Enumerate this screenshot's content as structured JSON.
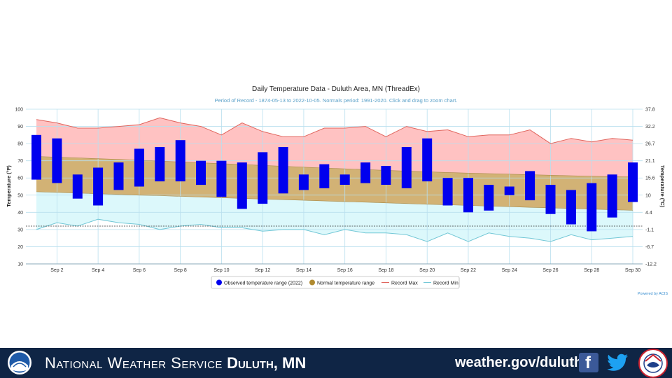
{
  "chart_data": {
    "type": "floating-bar-with-bands",
    "title": "Daily Temperature Data - Duluth Area, MN (ThreadEx)",
    "subtitle": "Period of Record - 1874-05-13 to 2022-10-05. Normals period: 1991-2020. Click and drag to zoom chart.",
    "ylabel_left": "Temperature (°F)",
    "ylabel_right": "Temperature (°C)",
    "ylim": [
      10,
      100
    ],
    "yticks_left": [
      "100",
      "90",
      "80",
      "70",
      "60",
      "50",
      "40",
      "30",
      "20",
      "10"
    ],
    "yticks_right": [
      "37.8",
      "32.2",
      "26.7",
      "21.1",
      "15.6",
      "10",
      "4.4",
      "-1.1",
      "-6.7",
      "-12.2"
    ],
    "days": [
      1,
      2,
      3,
      4,
      5,
      6,
      7,
      8,
      9,
      10,
      11,
      12,
      13,
      14,
      15,
      16,
      17,
      18,
      19,
      20,
      21,
      22,
      23,
      24,
      25,
      26,
      27,
      28,
      29,
      30
    ],
    "xtick_labels": [
      "Sep 2",
      "Sep 4",
      "Sep 6",
      "Sep 8",
      "Sep 10",
      "Sep 12",
      "Sep 14",
      "Sep 16",
      "Sep 18",
      "Sep 20",
      "Sep 22",
      "Sep 24",
      "Sep 26",
      "Sep 28",
      "Sep 30"
    ],
    "freezing_line": 32,
    "series": [
      {
        "name": "Observed temperature range (2022)",
        "color": "#0000ee",
        "high": [
          85,
          83,
          62,
          66,
          69,
          77,
          78,
          82,
          70,
          70,
          69,
          75,
          78,
          62,
          68,
          62,
          69,
          67,
          78,
          83,
          60,
          60,
          56,
          55,
          64,
          56,
          53,
          57,
          62,
          69
        ],
        "low": [
          59,
          57,
          48,
          44,
          53,
          55,
          58,
          58,
          56,
          49,
          42,
          45,
          51,
          53,
          54,
          56,
          57,
          56,
          54,
          58,
          44,
          40,
          41,
          50,
          47,
          39,
          33,
          29,
          37,
          46
        ]
      },
      {
        "name": "Normal temperature range",
        "color": "#c89a3a",
        "high": [
          72.5,
          72.1,
          71.7,
          71.2,
          70.8,
          70.3,
          69.8,
          69.3,
          68.8,
          68.3,
          67.8,
          67.3,
          66.8,
          66.3,
          65.8,
          65.3,
          64.9,
          64.4,
          64.0,
          63.6,
          63.2,
          62.8,
          62.5,
          62.2,
          61.9,
          61.6,
          61.3,
          61.0,
          60.8,
          60.6
        ],
        "low": [
          52.0,
          51.6,
          51.2,
          50.8,
          50.4,
          50.0,
          49.7,
          49.3,
          48.9,
          48.5,
          48.1,
          47.7,
          47.4,
          47.0,
          46.6,
          46.2,
          45.9,
          45.5,
          45.1,
          44.7,
          44.4,
          44.0,
          43.6,
          43.3,
          42.9,
          42.6,
          42.2,
          41.9,
          41.5,
          41.2
        ]
      },
      {
        "name": "Record Max",
        "color": "#e0645c",
        "values": [
          94,
          92,
          89,
          89,
          90,
          91,
          95,
          92,
          90,
          85,
          92,
          87,
          84,
          84,
          89,
          89,
          90,
          84,
          90,
          87,
          88,
          84,
          85,
          85,
          88,
          80,
          83,
          81,
          83,
          82
        ]
      },
      {
        "name": "Record Min",
        "color": "#72c7d6",
        "values": [
          30,
          34,
          32,
          36,
          34,
          33,
          30,
          32,
          33,
          31,
          31,
          29,
          30,
          30,
          27,
          30,
          28,
          28,
          27,
          23,
          28,
          23,
          28,
          26,
          25,
          23,
          27,
          24,
          25,
          26
        ]
      }
    ],
    "legend_position": "bottom",
    "credit": "Powered by ACIS",
    "grid": true
  },
  "footer": {
    "title_prefix": "National Weather Service",
    "title_location": "Duluth, MN",
    "url": "weather.gov/duluth"
  }
}
